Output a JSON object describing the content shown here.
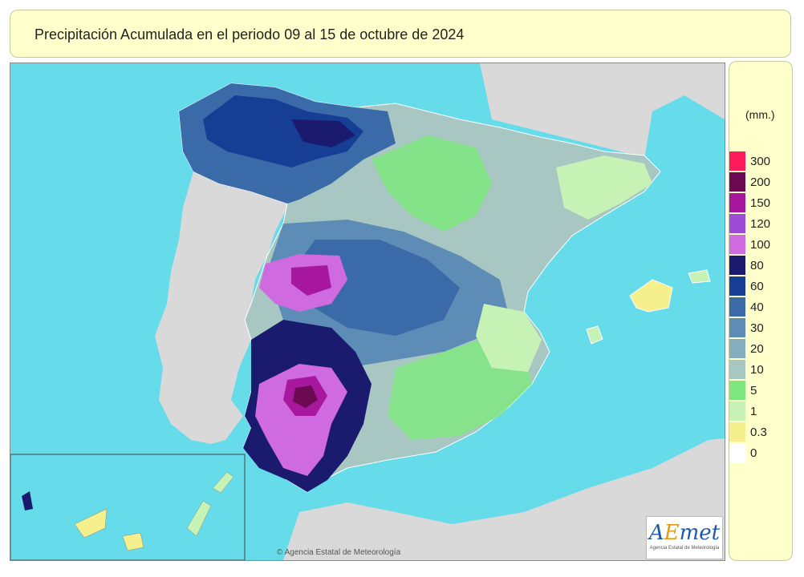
{
  "header": {
    "title": "Precipitación Acumulada en el periodo 09 al 15 de octubre de 2024"
  },
  "map": {
    "credit": "© Agencia Estatal de Meteorología",
    "logo_word_a": "A",
    "logo_word_e": "E",
    "logo_word_rest": "met",
    "logo_subtitle": "Agencia Estatal de Meteorología",
    "colors": {
      "sea": "#66dbea",
      "land_other": "#d9d9d9"
    }
  },
  "legend": {
    "units": "(mm.)",
    "bins": [
      {
        "color": "#ff1a5e",
        "label": "300"
      },
      {
        "color": "#6b0a52",
        "label": "200"
      },
      {
        "color": "#a8189e",
        "label": "150"
      },
      {
        "color": "#9d4ad6",
        "label": "120"
      },
      {
        "color": "#d06ae0",
        "label": "100"
      },
      {
        "color": "#1a1a6e",
        "label": "80"
      },
      {
        "color": "#163e94",
        "label": "60"
      },
      {
        "color": "#3a6aa8",
        "label": "40"
      },
      {
        "color": "#5d8cb6",
        "label": "30"
      },
      {
        "color": "#86adbe",
        "label": "20"
      },
      {
        "color": "#a8c6c2",
        "label": "10"
      },
      {
        "color": "#7ee87e",
        "label": "5"
      },
      {
        "color": "#c6f2b6",
        "label": "1"
      },
      {
        "color": "#f5f08c",
        "label": "0.3"
      },
      {
        "color": "#ffffff",
        "label": "0"
      }
    ]
  }
}
